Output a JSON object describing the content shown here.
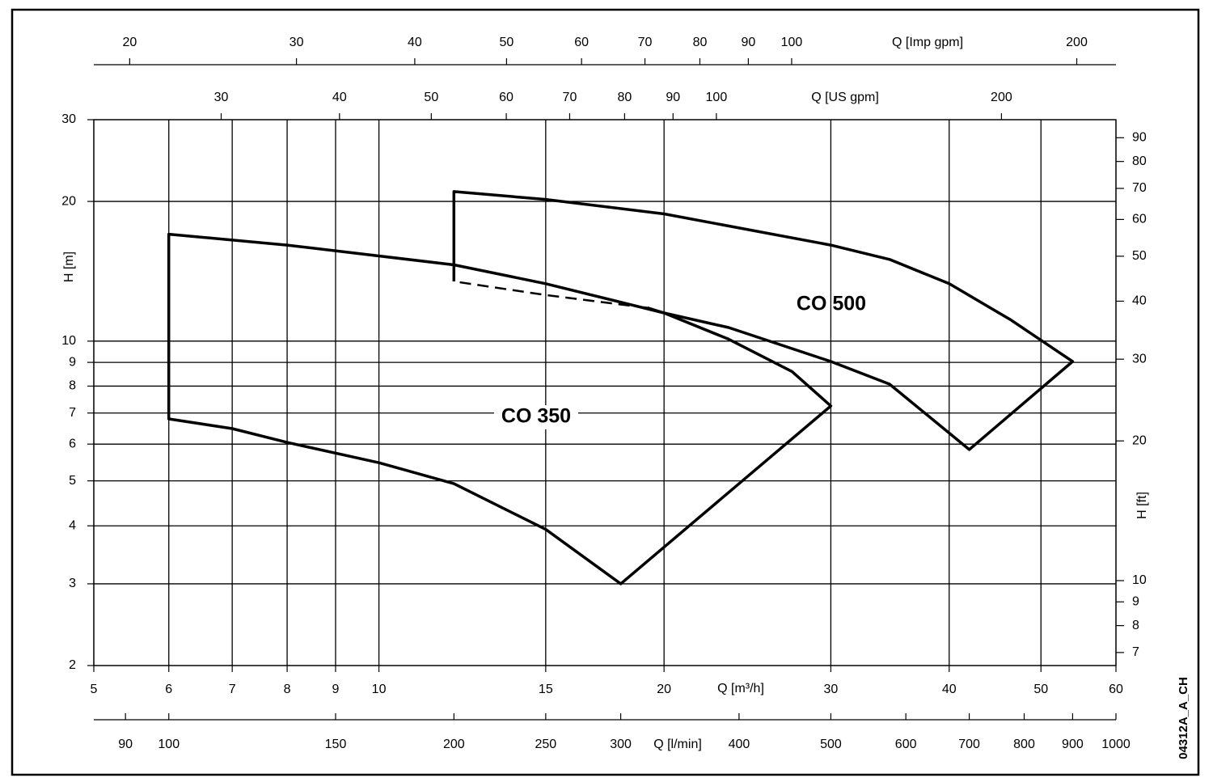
{
  "chart_data": {
    "type": "line",
    "log_scale": true,
    "grid": true,
    "xlabel": "Q [m³/h]",
    "ylabel": "H [m]",
    "xlim": [
      5,
      60
    ],
    "ylim": [
      2,
      30
    ],
    "xticks": [
      5,
      6,
      7,
      8,
      9,
      10,
      15,
      20,
      30,
      40,
      50,
      60
    ],
    "yticks": [
      2,
      3,
      4,
      5,
      6,
      7,
      8,
      9,
      10,
      20,
      30
    ],
    "series": [
      {
        "name": "CO 350",
        "color": "#000000",
        "x": [
          6,
          6,
          8,
          12,
          15,
          20,
          23.4,
          27.3,
          30,
          18,
          15,
          12,
          10,
          8,
          7
        ],
        "values": [
          6.8,
          17,
          16.1,
          14.6,
          13.3,
          11.5,
          10.1,
          8.6,
          7.25,
          3,
          3.93,
          4.93,
          5.47,
          6.05,
          6.48
        ]
      },
      {
        "name": "CO 500",
        "color": "#000000",
        "x": [
          12,
          12,
          15,
          20,
          30,
          34.6,
          40,
          46.5,
          54,
          42,
          34.6,
          30,
          23.4,
          20,
          19.2
        ],
        "values": [
          13.45,
          21,
          20.2,
          18.8,
          16.1,
          15,
          13.3,
          11.1,
          9.04,
          5.84,
          8.08,
          9.04,
          10.7,
          11.5,
          11.8
        ],
        "dashed_x": [
          19.2,
          15,
          12
        ],
        "dashed_values": [
          11.8,
          12.57,
          13.45
        ]
      }
    ],
    "imp_axis": {
      "label": "Q [Imp gpm]",
      "lim": [
        18.33,
        220
      ],
      "ticks": [
        20,
        30,
        40,
        50,
        60,
        70,
        80,
        90,
        100,
        200
      ]
    },
    "us_axis": {
      "label": "Q [US gpm]",
      "lim": [
        22.01,
        264.2
      ],
      "ticks": [
        30,
        40,
        50,
        60,
        70,
        80,
        90,
        100,
        200
      ]
    },
    "lmin_axis": {
      "label": "Q [l/min]",
      "lim": [
        83.33,
        1000
      ],
      "ticks": [
        90,
        100,
        150,
        200,
        250,
        300,
        400,
        500,
        600,
        700,
        800,
        900,
        1000
      ]
    },
    "ft_axis": {
      "label": "H [ft]",
      "lim": [
        6.562,
        98.43
      ],
      "ticks": [
        7,
        8,
        9,
        10,
        20,
        30,
        40,
        50,
        60,
        70,
        80,
        90
      ]
    },
    "code": "04312A_A_CH"
  }
}
